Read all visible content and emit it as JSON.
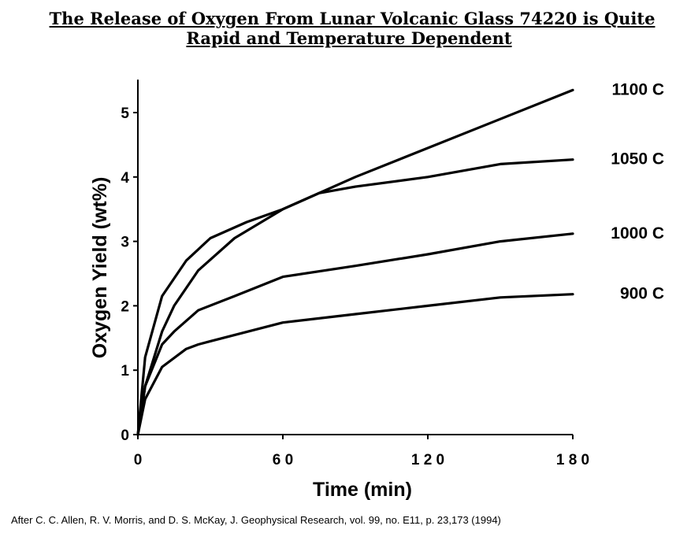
{
  "title_lines": [
    "The Release of Oxygen From Lunar Volcanic Glass 74220 is Quite",
    "Rapid and Temperature Dependent"
  ],
  "citation": "After C. C. Allen, R. V. Morris, and D. S. McKay, J. Geophysical Research, vol. 99, no. E11, p. 23,173 (1994)",
  "colors": {
    "line": "#000000",
    "background": "#ffffff"
  },
  "chart_data": {
    "type": "line",
    "title": "The Release of Oxygen From Lunar Volcanic Glass 74220 is Quite Rapid and Temperature Dependent",
    "xlabel": "Time     (min)",
    "ylabel": "Oxygen   Yield   (wt%)",
    "xlim": [
      0,
      180
    ],
    "ylim": [
      0,
      5.5
    ],
    "x_ticks": [
      0,
      60,
      120,
      180
    ],
    "x_tick_labels": [
      "0",
      "6 0",
      "1 2 0",
      "1 8 0"
    ],
    "y_ticks": [
      0,
      1,
      2,
      3,
      4,
      5
    ],
    "y_tick_labels": [
      "0",
      "1",
      "2",
      "3",
      "4",
      "5"
    ],
    "grid": false,
    "legend": "right (labels at line ends)",
    "series": [
      {
        "name": "1100   C",
        "points": [
          [
            0,
            0
          ],
          [
            3,
            0.75
          ],
          [
            10,
            1.6
          ],
          [
            15,
            2.0
          ],
          [
            25,
            2.55
          ],
          [
            40,
            3.05
          ],
          [
            60,
            3.5
          ],
          [
            90,
            4.0
          ],
          [
            120,
            4.45
          ],
          [
            150,
            4.9
          ],
          [
            180,
            5.35
          ]
        ]
      },
      {
        "name": "1050   C",
        "points": [
          [
            0,
            0
          ],
          [
            3,
            1.2
          ],
          [
            10,
            2.15
          ],
          [
            20,
            2.7
          ],
          [
            30,
            3.05
          ],
          [
            45,
            3.3
          ],
          [
            60,
            3.5
          ],
          [
            75,
            3.75
          ],
          [
            90,
            3.85
          ],
          [
            120,
            4.0
          ],
          [
            150,
            4.2
          ],
          [
            180,
            4.27
          ]
        ]
      },
      {
        "name": "1000   C",
        "points": [
          [
            0,
            0
          ],
          [
            3,
            0.75
          ],
          [
            10,
            1.4
          ],
          [
            15,
            1.6
          ],
          [
            25,
            1.93
          ],
          [
            40,
            2.15
          ],
          [
            60,
            2.45
          ],
          [
            90,
            2.62
          ],
          [
            120,
            2.8
          ],
          [
            150,
            3.0
          ],
          [
            180,
            3.12
          ]
        ]
      },
      {
        "name": "900   C",
        "points": [
          [
            0,
            0
          ],
          [
            3,
            0.55
          ],
          [
            10,
            1.05
          ],
          [
            20,
            1.33
          ],
          [
            25,
            1.4
          ],
          [
            30,
            1.45
          ],
          [
            60,
            1.74
          ],
          [
            90,
            1.87
          ],
          [
            120,
            2.0
          ],
          [
            150,
            2.13
          ],
          [
            180,
            2.18
          ]
        ]
      }
    ]
  }
}
